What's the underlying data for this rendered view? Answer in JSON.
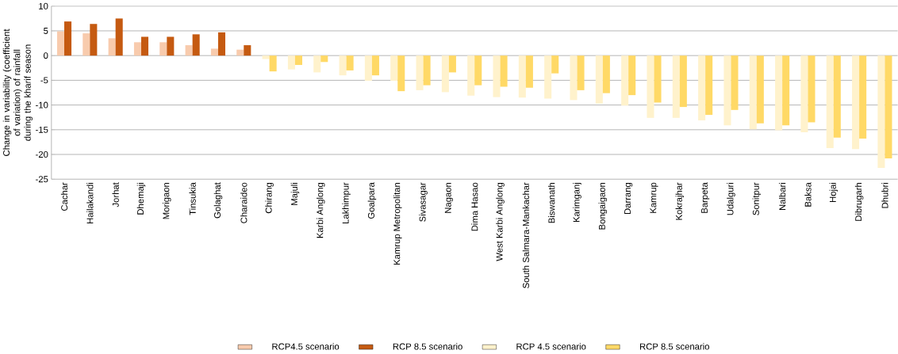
{
  "chart_data": {
    "type": "bar",
    "ylabel": "Change in variability (coefficient of variation) of rainfall during the kharif season",
    "categories": [
      "Cachar",
      "Hailakandi",
      "Jorhat",
      "Dhemaji",
      "Morigaon",
      "Tinsukia",
      "Golaghat",
      "Charaideo",
      "Chirang",
      "Majuli",
      "Karbi Anglong",
      "Lakhimpur",
      "Goalpara",
      "Kamrup Metropolitan",
      "Sivasagar",
      "Nagaon",
      "Dima Hasao",
      "West Karbi Anglong",
      "South Salmara-Mankachar",
      "Biswanath",
      "Karimganj",
      "Bongaigaon",
      "Darrang",
      "Kamrup",
      "Kokrajhar",
      "Barpeta",
      "Udalguri",
      "Sonitpur",
      "Nalbari",
      "Baksa",
      "Hojai",
      "Dibrugarh",
      "Dhubri"
    ],
    "series": [
      {
        "name": "RCP4.5 scenario",
        "color": "#f8cbad",
        "values": [
          4.9,
          4.5,
          3.5,
          2.7,
          2.7,
          2.1,
          1.4,
          1.2,
          null,
          null,
          null,
          null,
          null,
          null,
          null,
          null,
          null,
          null,
          null,
          null,
          null,
          null,
          null,
          null,
          null,
          null,
          null,
          null,
          null,
          null,
          null,
          null,
          null
        ]
      },
      {
        "name": "RCP 8.5 scenario",
        "color": "#c55a11",
        "values": [
          6.9,
          6.4,
          7.5,
          3.8,
          3.8,
          4.3,
          4.7,
          2.1,
          null,
          null,
          null,
          null,
          null,
          null,
          null,
          null,
          null,
          null,
          null,
          null,
          null,
          null,
          null,
          null,
          null,
          null,
          null,
          null,
          null,
          null,
          null,
          null,
          null
        ]
      },
      {
        "name": "RCP 4.5 scenario",
        "color": "#fff2cc",
        "values": [
          null,
          null,
          null,
          null,
          null,
          null,
          null,
          null,
          -0.7,
          -2.8,
          -3.4,
          -4.0,
          -5.1,
          -5.1,
          -7.0,
          -7.4,
          -8.1,
          -8.4,
          -8.5,
          -8.7,
          -9.0,
          -9.7,
          -10.1,
          -12.6,
          -12.6,
          -13.1,
          -14.1,
          -14.9,
          -15.1,
          -15.5,
          -18.7,
          -18.9,
          -22.7
        ]
      },
      {
        "name": "RCP 8.5 scenario",
        "color": "#ffd966",
        "values": [
          null,
          null,
          null,
          null,
          null,
          null,
          null,
          null,
          -3.2,
          -1.9,
          -1.3,
          -3.0,
          -4.0,
          -7.2,
          -6.0,
          -3.4,
          -6.0,
          -6.3,
          -6.5,
          -3.6,
          -7.0,
          -7.6,
          -8.0,
          -9.5,
          -10.4,
          -12.0,
          -11.0,
          -13.7,
          -14.1,
          -13.5,
          -16.6,
          -16.8,
          -20.8
        ]
      }
    ],
    "ylim": [
      -25,
      10
    ],
    "yticks": [
      -25,
      -20,
      -15,
      -10,
      -5,
      0,
      5,
      10
    ],
    "grid": "y",
    "legend": "bottom"
  }
}
